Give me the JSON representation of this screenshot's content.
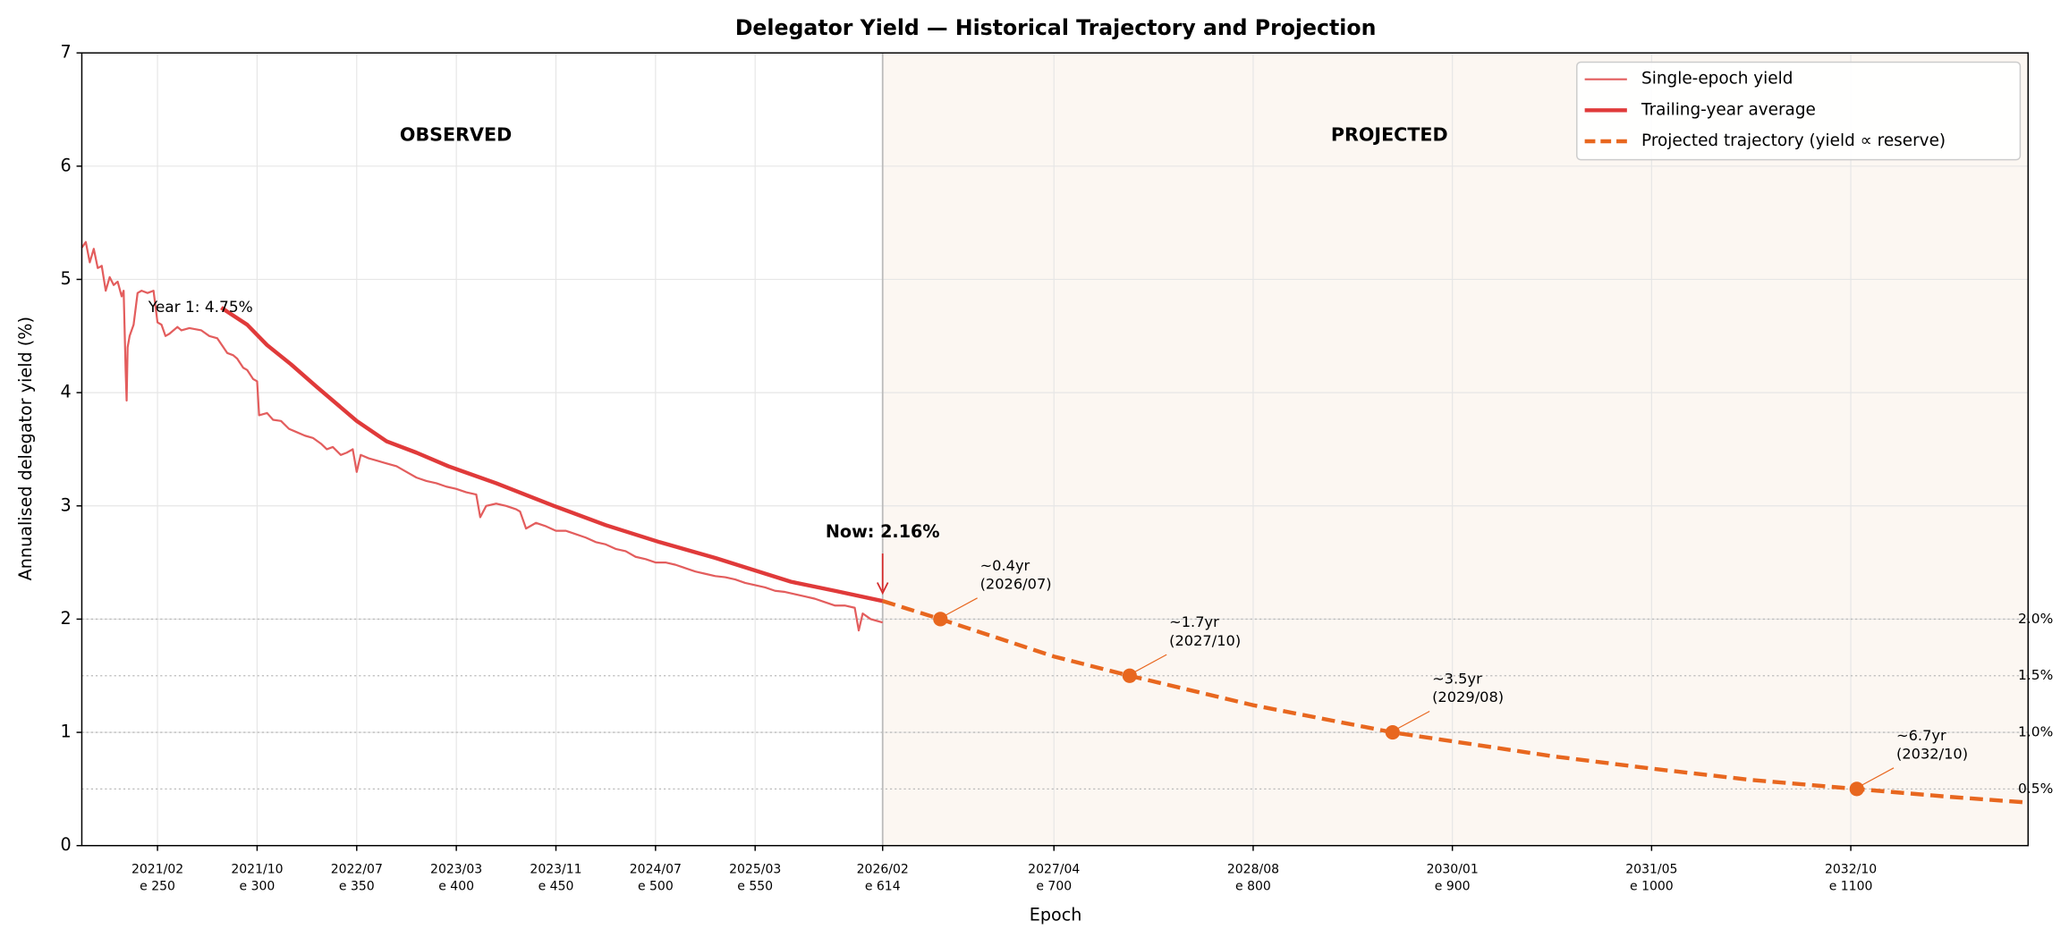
{
  "chart_data": {
    "type": "line",
    "title": "Delegator Yield — Historical Trajectory and Projection",
    "xlabel": "Epoch",
    "ylabel": "Annualised delegator yield (%)",
    "xlim": [
      212,
      1189
    ],
    "ylim": [
      0,
      7
    ],
    "xticks": [
      {
        "value": 250,
        "label": "e 250"
      },
      {
        "value": 300,
        "label": "e 300"
      },
      {
        "value": 350,
        "label": "e 350"
      },
      {
        "value": 400,
        "label": "e 400"
      },
      {
        "value": 450,
        "label": "e 450"
      },
      {
        "value": 500,
        "label": "e 500"
      },
      {
        "value": 550,
        "label": "e 550"
      },
      {
        "value": 614,
        "label": "e 614"
      },
      {
        "value": 700,
        "label": "e 700"
      },
      {
        "value": 800,
        "label": "e 800"
      },
      {
        "value": 900,
        "label": "e 900"
      },
      {
        "value": 1000,
        "label": "e 1000"
      },
      {
        "value": 1100,
        "label": "e 1100"
      }
    ],
    "xtick_dates": [
      "2021/02",
      "2021/10",
      "2022/07",
      "2023/03",
      "2023/11",
      "2024/07",
      "2025/03",
      "2026/02",
      "2027/04",
      "2028/08",
      "2030/01",
      "2031/05",
      "2032/10"
    ],
    "yticks": [
      0,
      1,
      2,
      3,
      4,
      5,
      6,
      7
    ],
    "grid": true,
    "legend": "upper right",
    "divider": 614,
    "series": [
      {
        "name": "Single-epoch yield",
        "color": "#e35d5d",
        "width": 1.5,
        "dashed": false,
        "x": [
          212,
          214,
          216,
          218,
          220,
          222,
          224,
          226,
          228,
          230,
          232,
          233,
          234,
          234.5,
          235,
          236,
          238,
          240,
          242,
          245,
          248,
          250,
          252,
          254,
          256,
          260,
          262,
          266,
          272,
          276,
          280,
          285,
          288,
          290,
          293,
          295,
          298,
          300,
          301,
          305,
          308,
          312,
          316,
          320,
          324,
          328,
          332,
          335,
          338,
          342,
          345,
          348,
          350,
          352,
          356,
          360,
          364,
          370,
          375,
          380,
          385,
          390,
          395,
          400,
          405,
          410,
          412,
          415,
          420,
          425,
          430,
          432,
          435,
          440,
          445,
          450,
          455,
          460,
          465,
          470,
          475,
          480,
          485,
          490,
          495,
          500,
          505,
          510,
          515,
          520,
          525,
          530,
          535,
          540,
          545,
          550,
          555,
          560,
          565,
          570,
          575,
          580,
          585,
          590,
          595,
          600,
          602,
          604,
          608,
          612,
          614
        ],
        "values": [
          5.28,
          5.33,
          5.15,
          5.27,
          5.1,
          5.12,
          4.9,
          5.02,
          4.95,
          4.98,
          4.85,
          4.9,
          4.2,
          3.93,
          4.4,
          4.5,
          4.6,
          4.88,
          4.9,
          4.88,
          4.9,
          4.62,
          4.6,
          4.5,
          4.52,
          4.58,
          4.55,
          4.57,
          4.55,
          4.5,
          4.48,
          4.35,
          4.33,
          4.3,
          4.22,
          4.2,
          4.12,
          4.1,
          3.8,
          3.82,
          3.76,
          3.75,
          3.68,
          3.65,
          3.62,
          3.6,
          3.55,
          3.5,
          3.52,
          3.45,
          3.47,
          3.5,
          3.3,
          3.45,
          3.42,
          3.4,
          3.38,
          3.35,
          3.3,
          3.25,
          3.22,
          3.2,
          3.17,
          3.15,
          3.12,
          3.1,
          2.9,
          3.0,
          3.02,
          3.0,
          2.97,
          2.95,
          2.8,
          2.85,
          2.82,
          2.78,
          2.78,
          2.75,
          2.72,
          2.68,
          2.66,
          2.62,
          2.6,
          2.55,
          2.53,
          2.5,
          2.5,
          2.48,
          2.45,
          2.42,
          2.4,
          2.38,
          2.37,
          2.35,
          2.32,
          2.3,
          2.28,
          2.25,
          2.24,
          2.22,
          2.2,
          2.18,
          2.15,
          2.12,
          2.12,
          2.1,
          1.9,
          2.05,
          2.0,
          1.98,
          1.97
        ]
      },
      {
        "name": "Trailing-year average",
        "color": "#e03a3a",
        "width": 3,
        "dashed": false,
        "x": [
          282,
          295,
          305,
          317,
          330,
          350,
          365,
          380,
          396,
          420,
          449,
          475,
          502,
          530,
          568,
          590,
          614
        ],
        "values": [
          4.75,
          4.6,
          4.42,
          4.25,
          4.05,
          3.75,
          3.57,
          3.47,
          3.35,
          3.2,
          3.0,
          2.83,
          2.68,
          2.54,
          2.33,
          2.25,
          2.16
        ]
      },
      {
        "name": "Projected trajectory (yield ∝ reserve)",
        "color": "#e8671f",
        "width": 3,
        "dashed": true,
        "x": [
          614,
          643,
          700,
          738,
          800,
          870,
          950,
          1000,
          1050,
          1103,
          1150,
          1189
        ],
        "values": [
          2.16,
          2.0,
          1.67,
          1.5,
          1.24,
          1.0,
          0.79,
          0.68,
          0.58,
          0.5,
          0.43,
          0.38
        ]
      }
    ],
    "milestones": [
      {
        "x": 643,
        "y": 2.0,
        "label": "~0.4yr",
        "date": "(2026/07)"
      },
      {
        "x": 738,
        "y": 1.5,
        "label": "~1.7yr",
        "date": "(2027/10)"
      },
      {
        "x": 870,
        "y": 1.0,
        "label": "~3.5yr",
        "date": "(2029/08)"
      },
      {
        "x": 1103,
        "y": 0.5,
        "label": "~6.7yr",
        "date": "(2032/10)"
      }
    ],
    "ref_lines": [
      {
        "value": 2.0,
        "label": "2.0%"
      },
      {
        "value": 1.5,
        "label": "1.5%"
      },
      {
        "value": 1.0,
        "label": "1.0%"
      },
      {
        "value": 0.5,
        "label": "0.5%"
      }
    ],
    "regions": [
      "OBSERVED",
      "PROJECTED"
    ],
    "annotations": [
      {
        "text": "Year 1: 4.75%",
        "x": 248,
        "y": 4.75
      },
      {
        "text": "Now: 2.16%",
        "x": 614,
        "y": 2.16
      }
    ]
  }
}
